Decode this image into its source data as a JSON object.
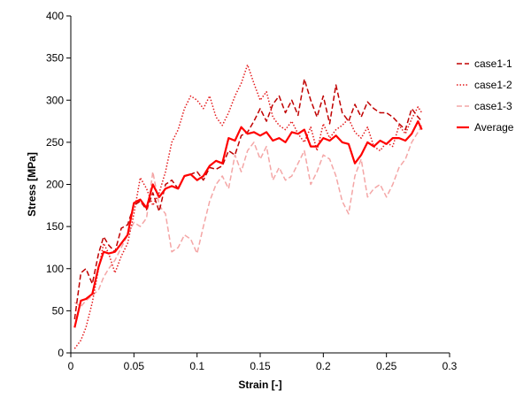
{
  "chart_data": {
    "type": "line",
    "title": "",
    "xlabel": "Strain [-]",
    "ylabel": "Stress [MPa]",
    "xlim": [
      0,
      0.3
    ],
    "ylim": [
      0,
      400
    ],
    "xticks": [
      0,
      0.05,
      0.1,
      0.15,
      0.2,
      0.25,
      0.3
    ],
    "xtick_labels": [
      "0",
      "0.05",
      "0.1",
      "0.15",
      "0.2",
      "0.25",
      "0.3"
    ],
    "yticks": [
      0,
      50,
      100,
      150,
      200,
      250,
      300,
      350,
      400
    ],
    "ytick_labels": [
      "0",
      "50",
      "100",
      "150",
      "200",
      "250",
      "300",
      "350",
      "400"
    ],
    "grid": false,
    "legend_position": "right",
    "series": [
      {
        "name": "case1-1",
        "style": "dashed",
        "color": "#c00000",
        "x": [
          0.003,
          0.008,
          0.012,
          0.017,
          0.022,
          0.026,
          0.03,
          0.035,
          0.04,
          0.045,
          0.05,
          0.055,
          0.06,
          0.065,
          0.07,
          0.075,
          0.08,
          0.085,
          0.09,
          0.095,
          0.1,
          0.105,
          0.11,
          0.115,
          0.12,
          0.125,
          0.13,
          0.135,
          0.14,
          0.145,
          0.15,
          0.155,
          0.16,
          0.165,
          0.17,
          0.175,
          0.18,
          0.185,
          0.19,
          0.195,
          0.2,
          0.205,
          0.21,
          0.215,
          0.22,
          0.225,
          0.23,
          0.235,
          0.24,
          0.245,
          0.25,
          0.255,
          0.26,
          0.265,
          0.27,
          0.275,
          0.278
        ],
        "y": [
          40,
          95,
          100,
          82,
          118,
          138,
          128,
          120,
          148,
          152,
          175,
          180,
          170,
          190,
          168,
          200,
          205,
          195,
          210,
          212,
          215,
          205,
          220,
          218,
          222,
          240,
          235,
          258,
          262,
          275,
          290,
          275,
          295,
          305,
          285,
          300,
          282,
          325,
          300,
          280,
          305,
          272,
          318,
          285,
          275,
          295,
          280,
          298,
          290,
          285,
          285,
          280,
          272,
          265,
          290,
          280,
          275
        ]
      },
      {
        "name": "case1-2",
        "style": "dotted",
        "color": "#e41a1c",
        "x": [
          0.003,
          0.008,
          0.012,
          0.017,
          0.022,
          0.026,
          0.03,
          0.035,
          0.04,
          0.045,
          0.05,
          0.055,
          0.06,
          0.065,
          0.07,
          0.075,
          0.08,
          0.085,
          0.09,
          0.095,
          0.1,
          0.105,
          0.11,
          0.115,
          0.12,
          0.125,
          0.13,
          0.135,
          0.14,
          0.145,
          0.15,
          0.155,
          0.16,
          0.165,
          0.17,
          0.175,
          0.18,
          0.185,
          0.19,
          0.195,
          0.2,
          0.205,
          0.21,
          0.215,
          0.22,
          0.225,
          0.23,
          0.235,
          0.24,
          0.245,
          0.25,
          0.255,
          0.26,
          0.265,
          0.27,
          0.275,
          0.278
        ],
        "y": [
          5,
          15,
          30,
          60,
          100,
          130,
          118,
          95,
          115,
          130,
          165,
          208,
          195,
          175,
          190,
          215,
          250,
          265,
          290,
          305,
          300,
          290,
          305,
          280,
          270,
          285,
          305,
          320,
          342,
          320,
          300,
          310,
          280,
          270,
          265,
          275,
          260,
          250,
          268,
          240,
          272,
          255,
          265,
          270,
          278,
          262,
          255,
          268,
          245,
          240,
          250,
          245,
          270,
          260,
          278,
          292,
          285
        ]
      },
      {
        "name": "case1-3",
        "style": "dashed",
        "color": "#f4a6a6",
        "x": [
          0.003,
          0.008,
          0.012,
          0.017,
          0.022,
          0.026,
          0.03,
          0.035,
          0.04,
          0.045,
          0.05,
          0.055,
          0.06,
          0.065,
          0.07,
          0.075,
          0.08,
          0.085,
          0.09,
          0.095,
          0.1,
          0.105,
          0.11,
          0.115,
          0.12,
          0.125,
          0.13,
          0.135,
          0.14,
          0.145,
          0.15,
          0.155,
          0.16,
          0.165,
          0.17,
          0.175,
          0.18,
          0.185,
          0.19,
          0.195,
          0.2,
          0.205,
          0.21,
          0.215,
          0.22,
          0.225,
          0.23,
          0.235,
          0.24,
          0.245,
          0.25,
          0.255,
          0.26,
          0.265,
          0.27,
          0.275,
          0.278
        ],
        "y": [
          60,
          55,
          62,
          68,
          75,
          90,
          100,
          110,
          125,
          140,
          155,
          150,
          160,
          215,
          175,
          165,
          120,
          125,
          140,
          135,
          118,
          150,
          180,
          200,
          210,
          195,
          235,
          215,
          240,
          250,
          230,
          245,
          205,
          220,
          205,
          210,
          225,
          240,
          200,
          215,
          235,
          230,
          210,
          180,
          165,
          210,
          230,
          185,
          195,
          200,
          185,
          200,
          220,
          230,
          250,
          262,
          270
        ]
      },
      {
        "name": "Average",
        "style": "solid",
        "color": "#ff0000",
        "x": [
          0.003,
          0.008,
          0.012,
          0.017,
          0.022,
          0.026,
          0.03,
          0.035,
          0.04,
          0.045,
          0.05,
          0.055,
          0.06,
          0.065,
          0.07,
          0.075,
          0.08,
          0.085,
          0.09,
          0.095,
          0.1,
          0.105,
          0.11,
          0.115,
          0.12,
          0.125,
          0.13,
          0.135,
          0.14,
          0.145,
          0.15,
          0.155,
          0.16,
          0.165,
          0.17,
          0.175,
          0.18,
          0.185,
          0.19,
          0.195,
          0.2,
          0.205,
          0.21,
          0.215,
          0.22,
          0.225,
          0.23,
          0.235,
          0.24,
          0.245,
          0.25,
          0.255,
          0.26,
          0.265,
          0.27,
          0.275,
          0.278
        ],
        "y": [
          30,
          62,
          64,
          70,
          102,
          120,
          118,
          120,
          130,
          140,
          178,
          182,
          172,
          200,
          185,
          195,
          198,
          195,
          210,
          212,
          205,
          210,
          222,
          228,
          225,
          255,
          252,
          268,
          260,
          262,
          258,
          262,
          252,
          255,
          250,
          262,
          260,
          265,
          245,
          245,
          255,
          252,
          258,
          250,
          248,
          225,
          235,
          250,
          245,
          252,
          248,
          255,
          255,
          252,
          260,
          275,
          265
        ]
      }
    ]
  }
}
